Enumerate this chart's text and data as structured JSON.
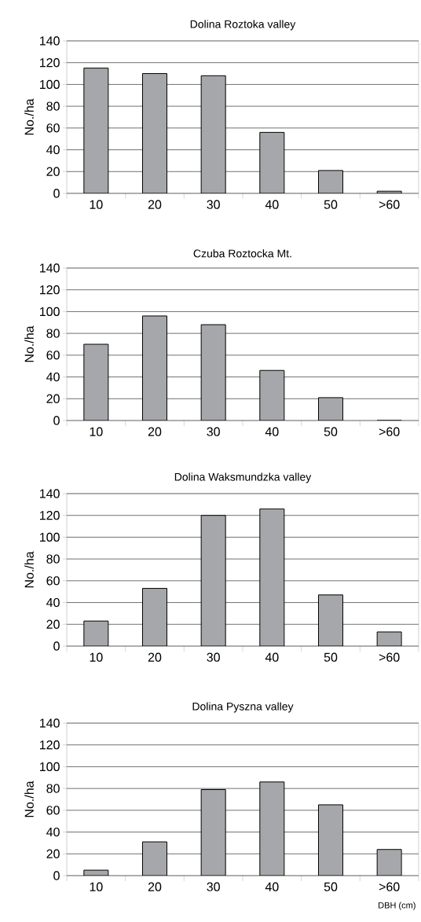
{
  "chart_data": [
    {
      "type": "bar",
      "title": "Dolina Roztoka valley",
      "ylabel": "No./ha",
      "categories": [
        "10",
        "20",
        "30",
        "40",
        "50",
        ">60"
      ],
      "values": [
        115,
        110,
        108,
        56,
        21,
        2
      ],
      "color": "#a6a7aa",
      "ylim": [
        0,
        140
      ],
      "yticks": [
        0,
        20,
        40,
        60,
        80,
        100,
        120,
        140
      ],
      "grid": "y"
    },
    {
      "type": "bar",
      "title": "Czuba Roztocka Mt.",
      "ylabel": "No./ha",
      "categories": [
        "10",
        "20",
        "30",
        "40",
        "50",
        ">60"
      ],
      "values": [
        70,
        96,
        88,
        46,
        21,
        0
      ],
      "color": "#a6a7aa",
      "ylim": [
        0,
        140
      ],
      "yticks": [
        0,
        20,
        40,
        60,
        80,
        100,
        120,
        140
      ],
      "grid": "y"
    },
    {
      "type": "bar",
      "title": "Dolina Waksmundzka valley",
      "ylabel": "No./ha",
      "categories": [
        "10",
        "20",
        "30",
        "40",
        "50",
        ">60"
      ],
      "values": [
        23,
        53,
        120,
        126,
        47,
        13
      ],
      "color": "#a6a7aa",
      "ylim": [
        0,
        140
      ],
      "yticks": [
        0,
        20,
        40,
        60,
        80,
        100,
        120,
        140
      ],
      "grid": "y"
    },
    {
      "type": "bar",
      "title": "Dolina Pyszna valley",
      "ylabel": "No./ha",
      "xlabel": "DBH (cm)",
      "categories": [
        "10",
        "20",
        "30",
        "40",
        "50",
        ">60"
      ],
      "values": [
        5,
        31,
        79,
        86,
        65,
        24
      ],
      "color": "#a6a7aa",
      "ylim": [
        0,
        140
      ],
      "yticks": [
        0,
        20,
        40,
        60,
        80,
        100,
        120,
        140
      ],
      "grid": "y"
    }
  ]
}
